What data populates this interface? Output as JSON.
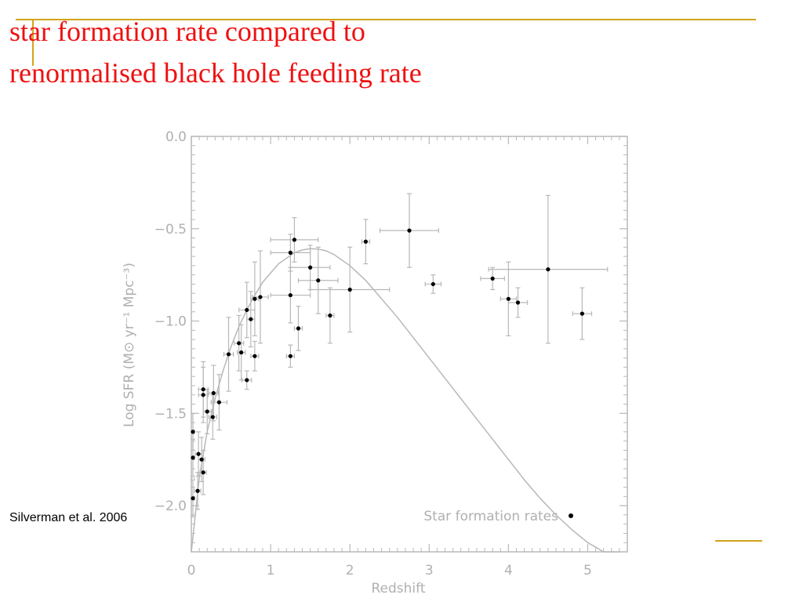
{
  "slide": {
    "title_line1": "star formation rate compared to",
    "title_line2": "renormalised black hole feeding rate",
    "citation": "Silverman et al. 2006",
    "title_color": "#ee1111",
    "accent_color": "#d4a21a"
  },
  "chart_data": {
    "type": "scatter",
    "xlabel": "Redshift",
    "ylabel": "Log SFR (M⊙ yr⁻¹ Mpc⁻³)",
    "xlim": [
      0,
      5.5
    ],
    "ylim": [
      -2.25,
      0.0
    ],
    "xticks": [
      0,
      1,
      2,
      3,
      4,
      5
    ],
    "yticks": [
      0.0,
      -0.5,
      -1.0,
      -1.5,
      -2.0
    ],
    "xtick_labels": [
      "0",
      "1",
      "2",
      "3",
      "4",
      "5"
    ],
    "ytick_labels": [
      "0.0",
      "−0.5",
      "−1.0",
      "−1.5",
      "−2.0"
    ],
    "grid": false,
    "legend_position": "bottom-right",
    "series": [
      {
        "name": "Star formation rates",
        "marker": "dot",
        "points": [
          {
            "x": 0.02,
            "y": -1.6,
            "xerr": 0.02,
            "yerr": 0.1
          },
          {
            "x": 0.02,
            "y": -1.74,
            "xerr": 0.02,
            "yerr": 0.1
          },
          {
            "x": 0.02,
            "y": -1.96,
            "xerr": 0.02,
            "yerr": 0.1
          },
          {
            "x": 0.08,
            "y": -1.92,
            "xerr": 0.04,
            "yerr": 0.1
          },
          {
            "x": 0.09,
            "y": -1.72,
            "xerr": 0.04,
            "yerr": 0.12
          },
          {
            "x": 0.13,
            "y": -1.75,
            "xerr": 0.04,
            "yerr": 0.12
          },
          {
            "x": 0.15,
            "y": -1.82,
            "xerr": 0.04,
            "yerr": 0.12
          },
          {
            "x": 0.15,
            "y": -1.37,
            "xerr": 0.06,
            "yerr": 0.15
          },
          {
            "x": 0.15,
            "y": -1.4,
            "xerr": 0.06,
            "yerr": 0.15
          },
          {
            "x": 0.2,
            "y": -1.49,
            "xerr": 0.05,
            "yerr": 0.12
          },
          {
            "x": 0.27,
            "y": -1.52,
            "xerr": 0.05,
            "yerr": 0.12
          },
          {
            "x": 0.28,
            "y": -1.39,
            "xerr": 0.06,
            "yerr": 0.15
          },
          {
            "x": 0.35,
            "y": -1.44,
            "xerr": 0.1,
            "yerr": 0.15
          },
          {
            "x": 0.47,
            "y": -1.18,
            "xerr": 0.06,
            "yerr": 0.2
          },
          {
            "x": 0.6,
            "y": -1.12,
            "xerr": 0.06,
            "yerr": 0.15
          },
          {
            "x": 0.63,
            "y": -1.17,
            "xerr": 0.05,
            "yerr": 0.15
          },
          {
            "x": 0.7,
            "y": -0.94,
            "xerr": 0.1,
            "yerr": 0.15
          },
          {
            "x": 0.7,
            "y": -1.32,
            "xerr": 0.06,
            "yerr": 0.05
          },
          {
            "x": 0.75,
            "y": -0.99,
            "xerr": 0.05,
            "yerr": 0.15
          },
          {
            "x": 0.8,
            "y": -1.19,
            "xerr": 0.05,
            "yerr": 0.08
          },
          {
            "x": 0.8,
            "y": -0.88,
            "xerr": 0.05,
            "yerr": 0.2
          },
          {
            "x": 0.87,
            "y": -0.87,
            "xerr": 0.1,
            "yerr": 0.25
          },
          {
            "x": 1.25,
            "y": -0.63,
            "xerr": 0.25,
            "yerr": 0.1
          },
          {
            "x": 1.3,
            "y": -0.56,
            "xerr": 0.3,
            "yerr": 0.12
          },
          {
            "x": 1.25,
            "y": -0.86,
            "xerr": 0.25,
            "yerr": 0.15
          },
          {
            "x": 1.25,
            "y": -1.19,
            "xerr": 0.05,
            "yerr": 0.06
          },
          {
            "x": 1.35,
            "y": -1.04,
            "xerr": 0.05,
            "yerr": 0.12
          },
          {
            "x": 1.5,
            "y": -0.71,
            "xerr": 0.25,
            "yerr": 0.12
          },
          {
            "x": 1.6,
            "y": -0.78,
            "xerr": 0.25,
            "yerr": 0.18
          },
          {
            "x": 1.75,
            "y": -0.97,
            "xerr": 0.05,
            "yerr": 0.15
          },
          {
            "x": 2.0,
            "y": -0.83,
            "xerr": 0.5,
            "yerr": 0.23
          },
          {
            "x": 2.2,
            "y": -0.57,
            "xerr": 0.05,
            "yerr": 0.12
          },
          {
            "x": 2.75,
            "y": -0.51,
            "xerr": 0.37,
            "yerr": 0.2
          },
          {
            "x": 3.05,
            "y": -0.8,
            "xerr": 0.1,
            "yerr": 0.05
          },
          {
            "x": 3.8,
            "y": -0.77,
            "xerr": 0.15,
            "yerr": 0.06
          },
          {
            "x": 4.0,
            "y": -0.88,
            "xerr": 0.1,
            "yerr": 0.2
          },
          {
            "x": 4.12,
            "y": -0.9,
            "xerr": 0.12,
            "yerr": 0.08
          },
          {
            "x": 4.5,
            "y": -0.72,
            "xerr": 0.75,
            "yerr": 0.4
          },
          {
            "x": 4.93,
            "y": -0.96,
            "xerr": 0.12,
            "yerr": 0.14
          }
        ]
      },
      {
        "name": "",
        "type": "line",
        "x": [
          0.0,
          0.1,
          0.2,
          0.3,
          0.4,
          0.5,
          0.6,
          0.7,
          0.8,
          0.9,
          1.0,
          1.1,
          1.2,
          1.3,
          1.4,
          1.5,
          1.6,
          1.7,
          1.8,
          2.0,
          2.2,
          2.4,
          2.6,
          2.8,
          3.0,
          3.2,
          3.4,
          3.6,
          3.8,
          4.0,
          4.2,
          4.4,
          4.6,
          4.8,
          5.0,
          5.2,
          5.4
        ],
        "y": [
          -2.25,
          -1.85,
          -1.6,
          -1.42,
          -1.27,
          -1.14,
          -1.03,
          -0.94,
          -0.86,
          -0.79,
          -0.74,
          -0.69,
          -0.66,
          -0.63,
          -0.615,
          -0.608,
          -0.61,
          -0.62,
          -0.64,
          -0.7,
          -0.78,
          -0.88,
          -0.98,
          -1.09,
          -1.2,
          -1.31,
          -1.42,
          -1.53,
          -1.64,
          -1.75,
          -1.86,
          -1.96,
          -2.05,
          -2.13,
          -2.2,
          -2.25,
          -2.25
        ]
      }
    ]
  }
}
